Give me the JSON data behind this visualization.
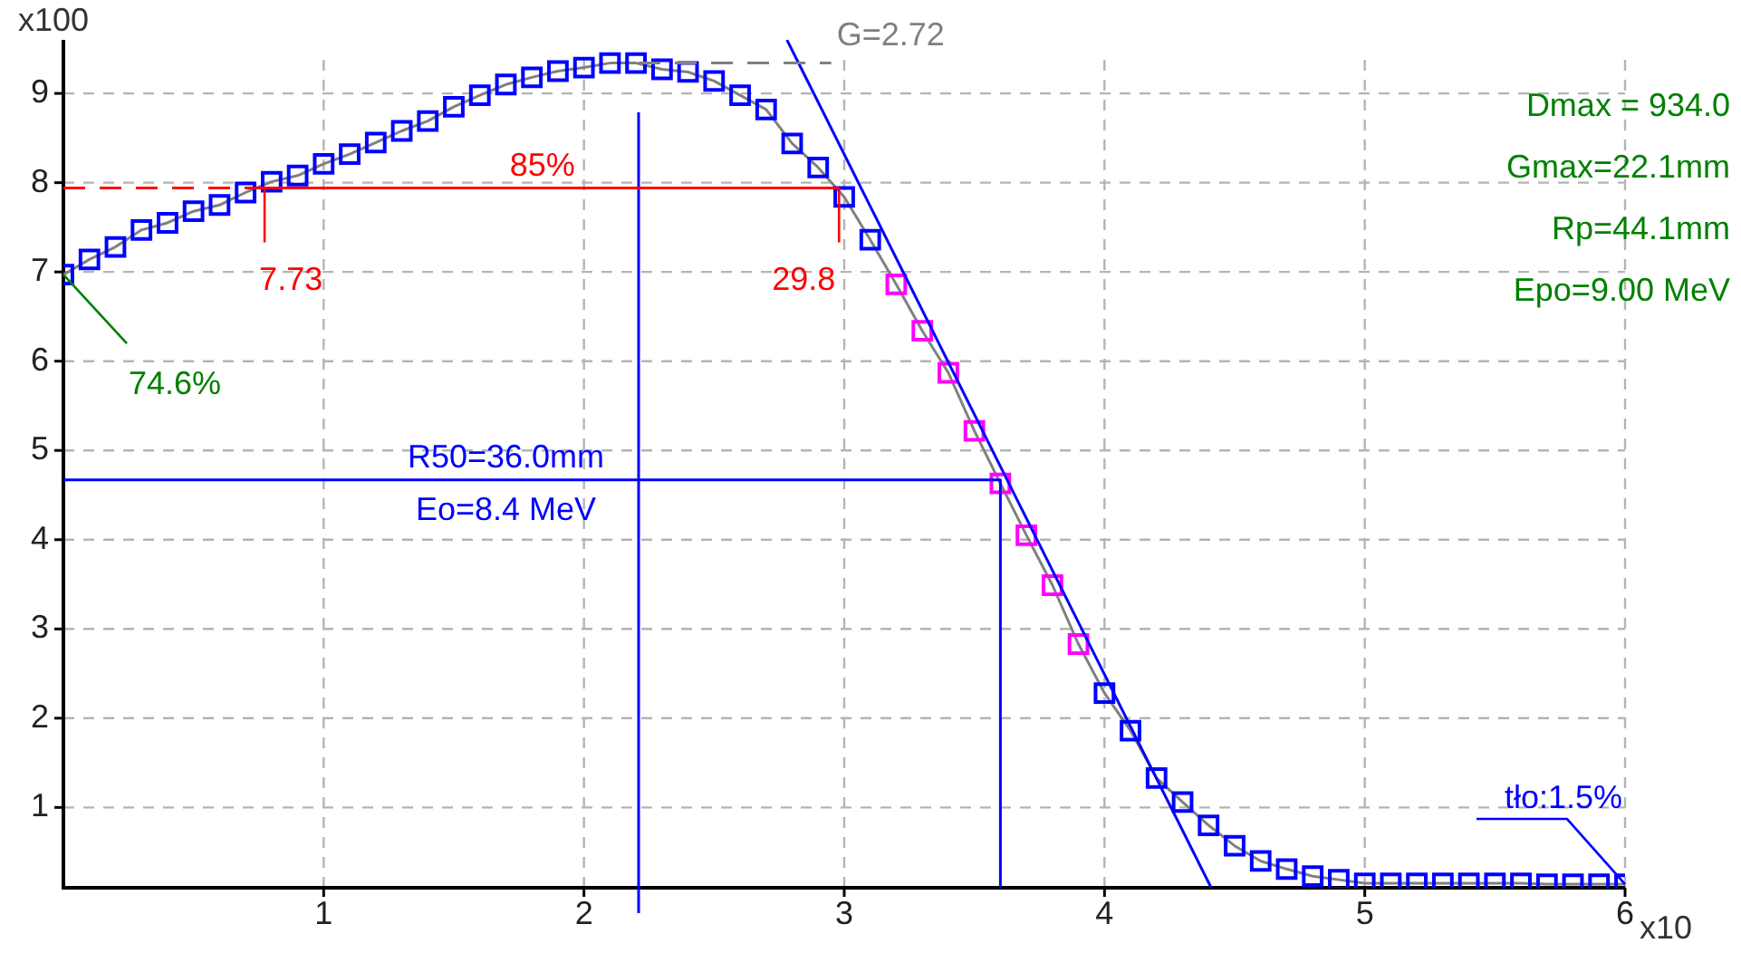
{
  "chart_data": {
    "type": "line",
    "xlabel": "x10",
    "ylabel": "x100",
    "x": [
      0,
      0.1,
      0.2,
      0.3,
      0.4,
      0.5,
      0.6,
      0.7,
      0.8,
      0.9,
      1.0,
      1.1,
      1.2,
      1.3,
      1.4,
      1.5,
      1.6,
      1.7,
      1.8,
      1.9,
      2.0,
      2.1,
      2.2,
      2.3,
      2.4,
      2.5,
      2.6,
      2.7,
      2.8,
      2.9,
      3.0,
      3.1,
      3.2,
      3.3,
      3.4,
      3.5,
      3.6,
      3.7,
      3.8,
      3.9,
      4.0,
      4.1,
      4.2,
      4.3,
      4.4,
      4.5,
      4.6,
      4.7,
      4.8,
      4.9,
      5.0,
      5.1,
      5.2,
      5.3,
      5.4,
      5.5,
      5.6,
      5.7,
      5.8,
      5.9,
      6.0
    ],
    "series": [
      {
        "color": "#808080",
        "marker": "none",
        "values": [
          6.97,
          7.14,
          7.28,
          7.47,
          7.55,
          7.68,
          7.75,
          7.89,
          8.01,
          8.08,
          8.21,
          8.32,
          8.45,
          8.58,
          8.69,
          8.85,
          8.98,
          9.1,
          9.18,
          9.25,
          9.29,
          9.34,
          9.34,
          9.27,
          9.24,
          9.14,
          8.98,
          8.82,
          8.44,
          8.17,
          7.84,
          7.36,
          6.86,
          6.34,
          5.87,
          5.22,
          4.63,
          4.05,
          3.49,
          2.83,
          2.28,
          1.86,
          1.33,
          1.06,
          0.8,
          0.57,
          0.4,
          0.31,
          0.23,
          0.19,
          0.15,
          0.15,
          0.15,
          0.15,
          0.15,
          0.15,
          0.15,
          0.14,
          0.14,
          0.14,
          0.14
        ]
      },
      {
        "type": "scatter",
        "marker": "square",
        "colors": [
          "#0000ff",
          "#0000ff",
          "#0000ff",
          "#0000ff",
          "#0000ff",
          "#0000ff",
          "#0000ff",
          "#0000ff",
          "#0000ff",
          "#0000ff",
          "#0000ff",
          "#0000ff",
          "#0000ff",
          "#0000ff",
          "#0000ff",
          "#0000ff",
          "#0000ff",
          "#0000ff",
          "#0000ff",
          "#0000ff",
          "#0000ff",
          "#0000ff",
          "#0000ff",
          "#0000ff",
          "#0000ff",
          "#0000ff",
          "#0000ff",
          "#0000ff",
          "#0000ff",
          "#0000ff",
          "#0000ff",
          "#0000ff",
          "#ff00ff",
          "#ff00ff",
          "#ff00ff",
          "#ff00ff",
          "#ff00ff",
          "#ff00ff",
          "#ff00ff",
          "#ff00ff",
          "#0000ff",
          "#0000ff",
          "#0000ff",
          "#0000ff",
          "#0000ff",
          "#0000ff",
          "#0000ff",
          "#0000ff",
          "#0000ff",
          "#0000ff",
          "#0000ff",
          "#0000ff",
          "#0000ff",
          "#0000ff",
          "#0000ff",
          "#0000ff",
          "#0000ff",
          "#0000ff",
          "#0000ff",
          "#0000ff",
          "#0000ff"
        ],
        "values": [
          6.97,
          7.14,
          7.28,
          7.47,
          7.55,
          7.68,
          7.75,
          7.89,
          8.01,
          8.08,
          8.21,
          8.32,
          8.45,
          8.58,
          8.69,
          8.85,
          8.98,
          9.1,
          9.18,
          9.25,
          9.29,
          9.34,
          9.34,
          9.27,
          9.24,
          9.14,
          8.98,
          8.82,
          8.44,
          8.17,
          7.84,
          7.36,
          6.86,
          6.34,
          5.87,
          5.22,
          4.63,
          4.05,
          3.49,
          2.83,
          2.28,
          1.86,
          1.33,
          1.06,
          0.8,
          0.57,
          0.4,
          0.31,
          0.23,
          0.19,
          0.15,
          0.15,
          0.15,
          0.15,
          0.15,
          0.15,
          0.15,
          0.14,
          0.14,
          0.14,
          0.14
        ]
      },
      {
        "color": "#0000ff",
        "x": [
          2.78,
          4.41
        ],
        "values": [
          9.6,
          0.1
        ]
      },
      {
        "color": "#ff0000",
        "line_style": "dashed",
        "x": [
          0,
          0.773
        ],
        "values": [
          7.94,
          7.94
        ]
      },
      {
        "color": "#ff0000",
        "x": [
          0.773,
          2.98
        ],
        "values": [
          7.94,
          7.94
        ]
      },
      {
        "color": "#808080",
        "line_style": "dashed",
        "x": [
          2.21,
          2.95
        ],
        "values": [
          9.34,
          9.34
        ]
      },
      {
        "color": "#0000ff",
        "x": [
          0,
          3.6,
          3.6
        ],
        "values": [
          4.67,
          4.67,
          0.1
        ]
      }
    ],
    "ref_lines": [
      {
        "axis": "x",
        "value": 2.21,
        "color": "#0000ff"
      }
    ],
    "annotations": [
      {
        "text": "85%",
        "x": 1.84,
        "y": 7.94
      },
      {
        "text": "7.73",
        "x": 0.773,
        "y": 7.94
      },
      {
        "text": "29.8",
        "x": 2.98,
        "y": 7.94
      },
      {
        "text": "74.6%",
        "x": 0,
        "y": 6.97
      },
      {
        "text": "G=2.72",
        "x": 2.95,
        "y": 9.34
      },
      {
        "text": "R50=36.0mm",
        "x": 1.7,
        "y": 4.67
      },
      {
        "text": "Eo=8.4 MeV",
        "x": 1.7,
        "y": 4.67
      },
      {
        "text": "tło:1.5%",
        "x": 6.0,
        "y": 0.14
      },
      "Dmax = 934.0",
      "Gmax=22.1mm",
      "Rp=44.1mm",
      "Epo=9.00 MeV"
    ],
    "xlim": [
      0,
      6
    ],
    "xticks": [
      1,
      2,
      3,
      4,
      5,
      6
    ],
    "ylim": [
      0.1,
      9.6
    ],
    "yticks": [
      1,
      2,
      3,
      4,
      5,
      6,
      7,
      8,
      9
    ],
    "grid": true,
    "legend": false
  }
}
